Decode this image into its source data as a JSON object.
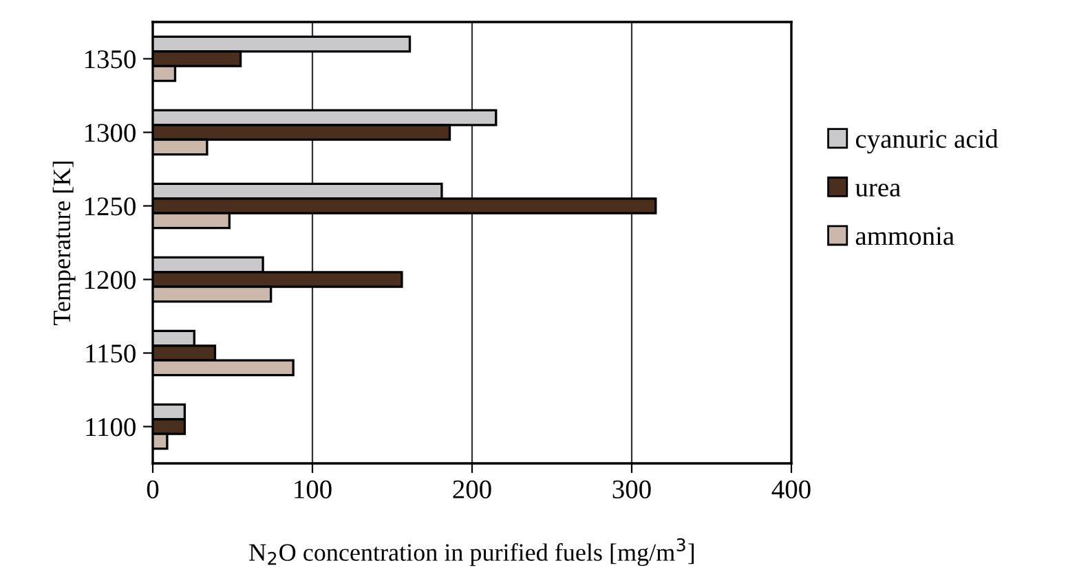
{
  "chart_data": {
    "type": "bar",
    "orientation": "horizontal",
    "ylabel": "Temperature [K]",
    "xlabel": "N$_{2}$O concentration in purified fuels [mg/m$^{3}$]",
    "categories": [
      "1350",
      "1300",
      "1250",
      "1200",
      "1150",
      "1100"
    ],
    "series": [
      {
        "name": "cyanuric acid",
        "color": "#c9c9cb",
        "values": [
          161,
          215,
          181,
          69,
          26,
          20
        ]
      },
      {
        "name": "urea",
        "color": "#4a2f1f",
        "values": [
          55,
          186,
          315,
          156,
          39,
          20
        ]
      },
      {
        "name": "ammonia",
        "color": "#cbb8aa",
        "values": [
          14,
          34,
          48,
          74,
          88,
          9
        ]
      }
    ],
    "xlim": [
      0,
      400
    ],
    "xticks": [
      0,
      100,
      200,
      300,
      400
    ],
    "grid": "x",
    "legend": "right"
  }
}
